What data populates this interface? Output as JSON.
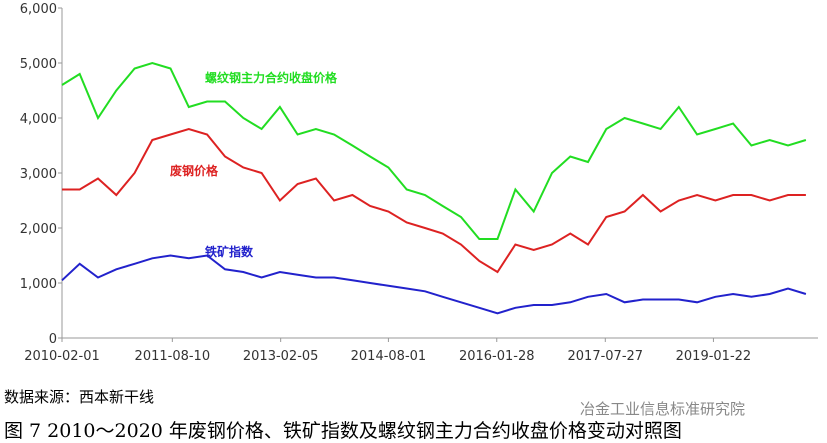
{
  "chart_data": {
    "type": "line",
    "x": [
      "2010-02-01",
      "2010-05-01",
      "2010-08-01",
      "2010-11-01",
      "2011-02-01",
      "2011-05-01",
      "2011-08-01",
      "2011-11-01",
      "2012-02-01",
      "2012-05-01",
      "2012-08-01",
      "2012-11-01",
      "2013-02-01",
      "2013-05-01",
      "2013-08-01",
      "2013-11-01",
      "2014-02-01",
      "2014-05-01",
      "2014-08-01",
      "2014-11-01",
      "2015-02-01",
      "2015-05-01",
      "2015-08-01",
      "2015-11-01",
      "2016-02-01",
      "2016-05-01",
      "2016-08-01",
      "2016-11-01",
      "2017-02-01",
      "2017-05-01",
      "2017-08-01",
      "2017-11-01",
      "2018-02-01",
      "2018-05-01",
      "2018-08-01",
      "2018-11-01",
      "2019-02-01",
      "2019-05-01",
      "2019-08-01",
      "2019-11-01",
      "2020-02-01",
      "2020-05-01"
    ],
    "series": [
      {
        "name": "螺纹钢主力合约收盘价格",
        "color": "#22dd22",
        "values": [
          4600,
          4800,
          4000,
          4500,
          4900,
          5000,
          4900,
          4200,
          4300,
          4300,
          4000,
          3800,
          4200,
          3700,
          3800,
          3700,
          3500,
          3300,
          3100,
          2700,
          2600,
          2400,
          2200,
          1800,
          1800,
          2700,
          2300,
          3000,
          3300,
          3200,
          3800,
          4000,
          3900,
          3800,
          4200,
          3700,
          3800,
          3900,
          3500,
          3600,
          3500,
          3600
        ]
      },
      {
        "name": "废钢价格",
        "color": "#dd2222",
        "values": [
          2700,
          2700,
          2900,
          2600,
          3000,
          3600,
          3700,
          3800,
          3700,
          3300,
          3100,
          3000,
          2500,
          2800,
          2900,
          2500,
          2600,
          2400,
          2300,
          2100,
          2000,
          1900,
          1700,
          1400,
          1200,
          1700,
          1600,
          1700,
          1900,
          1700,
          2200,
          2300,
          2600,
          2300,
          2500,
          2600,
          2500,
          2600,
          2600,
          2500,
          2600,
          2600
        ]
      },
      {
        "name": "铁矿指数",
        "color": "#2222cc",
        "values": [
          1050,
          1350,
          1100,
          1250,
          1350,
          1450,
          1500,
          1450,
          1500,
          1250,
          1200,
          1100,
          1200,
          1150,
          1100,
          1100,
          1050,
          1000,
          950,
          900,
          850,
          750,
          650,
          550,
          450,
          550,
          600,
          600,
          650,
          750,
          800,
          650,
          700,
          700,
          700,
          650,
          750,
          800,
          750,
          800,
          900,
          800
        ]
      }
    ],
    "xlim": [
      "2010-02-01",
      "2020-07-01"
    ],
    "xticks": [
      "2010-02-01",
      "2011-08-10",
      "2013-02-05",
      "2014-08-01",
      "2016-01-28",
      "2017-07-27",
      "2019-01-22"
    ],
    "ylim": [
      0,
      6000
    ],
    "yticks": [
      0,
      {
        "value": 1000,
        "label": "1,000"
      },
      {
        "value": 2000,
        "label": "2,000"
      },
      {
        "value": 3000,
        "label": "3,000"
      },
      {
        "value": 4000,
        "label": "4,000"
      },
      {
        "value": 5000,
        "label": "5,000"
      },
      {
        "value": 6000,
        "label": "6,000"
      }
    ],
    "grid": false
  },
  "source": "数据来源：西本新干线",
  "watermark": "冶金工业信息标准研究院",
  "caption": "图 7 2010～2020 年废钢价格、铁矿指数及螺纹钢主力合约收盘价格变动对照图"
}
